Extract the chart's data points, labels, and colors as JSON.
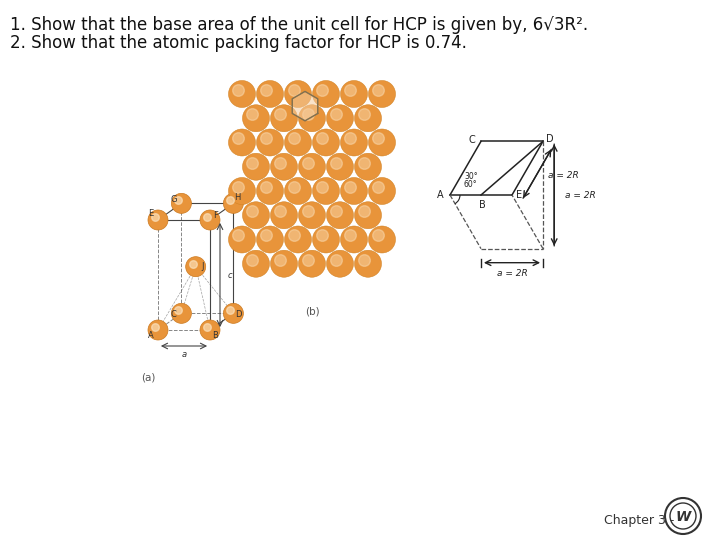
{
  "title_line1": "1. Show that the base area of the unit cell for HCP is given by, 6√3R².",
  "title_line2": "2. Show that the atomic packing factor for HCP is 0.74.",
  "footer_text": "Chapter 3 -",
  "bg_color": "#ffffff",
  "title_fontsize": 12,
  "footer_fontsize": 9,
  "sphere_color": "#E8943A",
  "sphere_edge": "#cc7a20",
  "line_color": "#444444",
  "label_fontsize": 6,
  "caption_fontsize": 7.5,
  "geo_line_color": "#222222",
  "geo_label_fontsize": 7,
  "geo_arrow_fontsize": 6.5
}
